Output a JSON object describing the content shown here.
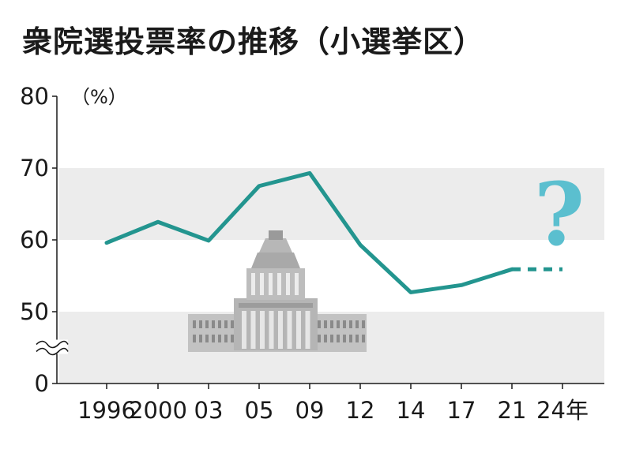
{
  "title": "衆院選投票率の推移（小選挙区）",
  "chart_data": {
    "type": "line",
    "title": "衆院選投票率の推移（小選挙区）",
    "ylabel": "（%）",
    "xlabel": "",
    "ylim": [
      0,
      80
    ],
    "y_axis_break": [
      0,
      45
    ],
    "yticks": [
      "0",
      "50",
      "60",
      "70",
      "80"
    ],
    "x_tick_labels": [
      "1996",
      "2000",
      "03",
      "05",
      "09",
      "12",
      "14",
      "17",
      "21",
      "24年"
    ],
    "series": [
      {
        "x": [
          "1996",
          "2000",
          "03",
          "05",
          "09",
          "12",
          "14",
          "17",
          "21"
        ],
        "values": [
          59.6,
          62.5,
          59.9,
          67.5,
          69.3,
          59.3,
          52.7,
          53.7,
          55.9
        ]
      }
    ],
    "projection": {
      "x": [
        "21",
        "24年"
      ],
      "values": [
        55.9,
        55.9
      ],
      "style": "dashed"
    },
    "annotation": "?",
    "colors": {
      "line": "#23958f",
      "question": "#5bbfcf",
      "band": "#ececec",
      "axis": "#1a1a1a",
      "building": "#9c9c9c"
    },
    "illustration": "national-diet-building"
  }
}
